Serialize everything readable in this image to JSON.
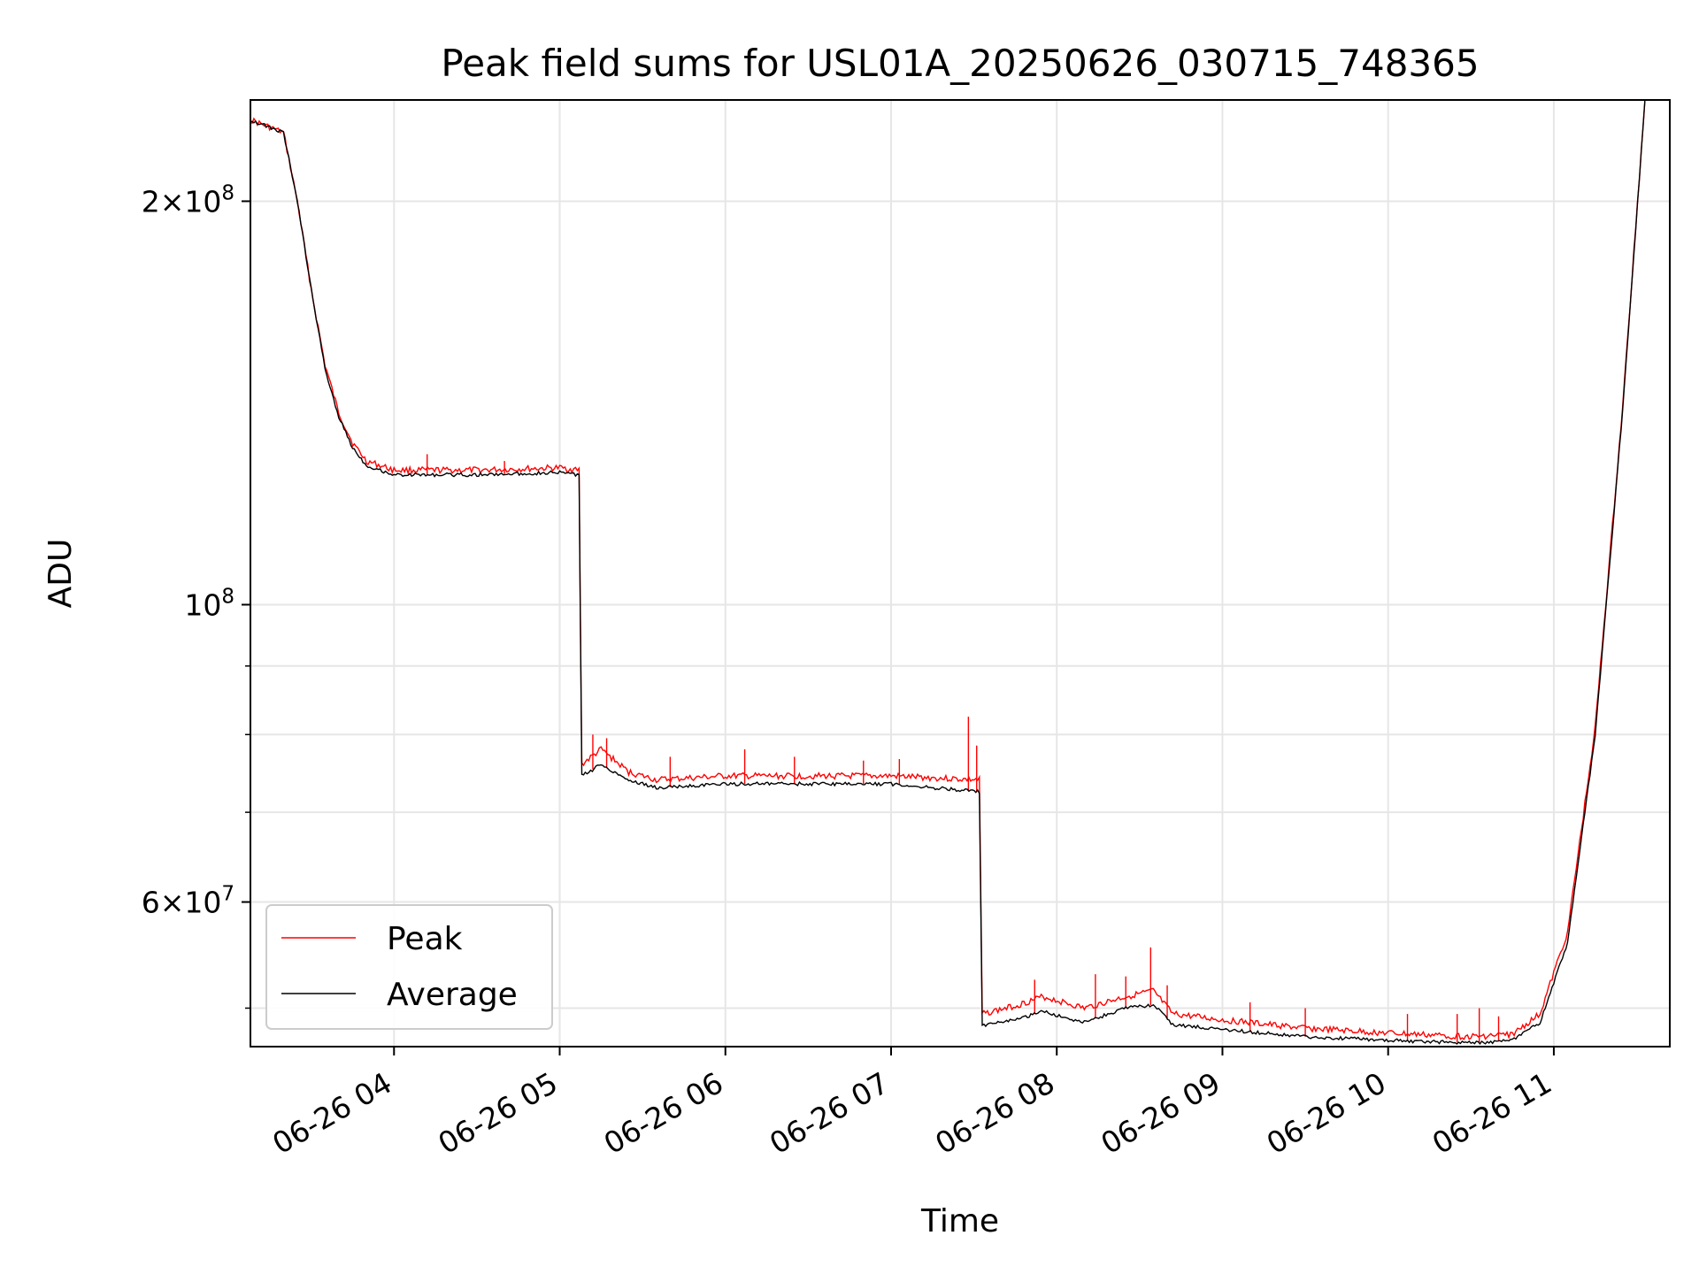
{
  "chart_data": {
    "type": "line",
    "title": "Peak field sums for USL01A_20250626_030715_748365",
    "xlabel": "Time",
    "ylabel": "ADU",
    "yscale": "log",
    "ylim": [
      46800000,
      238000000
    ],
    "xlim": [
      "2025-06-26 03:08",
      "2025-06-26 11:42"
    ],
    "grid": true,
    "legend": {
      "position": "lower left",
      "entries": [
        "Peak",
        "Average"
      ]
    },
    "x_ticks": [
      "06-26 04",
      "06-26 05",
      "06-26 06",
      "06-26 07",
      "06-26 08",
      "06-26 09",
      "06-26 10",
      "06-26 11"
    ],
    "y_ticks": [
      {
        "value": 200000000,
        "base": "2",
        "mult": "×10",
        "exp": "8"
      },
      {
        "value": 100000000,
        "base": "",
        "mult": "10",
        "exp": "8"
      },
      {
        "value": 60000000,
        "base": "6",
        "mult": "×10",
        "exp": "7"
      }
    ],
    "y_minor_ticks": [
      50000000,
      70000000,
      80000000,
      90000000
    ],
    "colors": {
      "peak": "#ff0000",
      "average": "#000000",
      "grid": "#e6e6e6"
    },
    "series": [
      {
        "name": "Average",
        "x": [
          "2025-06-26 03:08",
          "2025-06-26 03:20",
          "2025-06-26 03:25",
          "2025-06-26 03:30",
          "2025-06-26 03:35",
          "2025-06-26 03:40",
          "2025-06-26 03:45",
          "2025-06-26 03:50",
          "2025-06-26 04:00",
          "2025-06-26 04:30",
          "2025-06-26 05:00",
          "2025-06-26 05:07",
          "2025-06-26 05:08",
          "2025-06-26 05:15",
          "2025-06-26 05:25",
          "2025-06-26 05:35",
          "2025-06-26 06:00",
          "2025-06-26 06:30",
          "2025-06-26 07:00",
          "2025-06-26 07:32",
          "2025-06-26 07:33",
          "2025-06-26 07:45",
          "2025-06-26 07:55",
          "2025-06-26 08:10",
          "2025-06-26 08:25",
          "2025-06-26 08:35",
          "2025-06-26 08:42",
          "2025-06-26 09:00",
          "2025-06-26 09:30",
          "2025-06-26 10:00",
          "2025-06-26 10:30",
          "2025-06-26 10:45",
          "2025-06-26 10:55",
          "2025-06-26 11:05",
          "2025-06-26 11:15",
          "2025-06-26 11:25",
          "2025-06-26 11:33"
        ],
        "values": [
          230000000,
          225000000,
          200000000,
          172000000,
          150000000,
          138000000,
          131000000,
          127000000,
          125000000,
          125000000,
          125500000,
          125000000,
          74500000,
          76000000,
          74000000,
          73000000,
          73500000,
          73500000,
          73500000,
          72500000,
          48500000,
          49000000,
          49700000,
          48800000,
          50000000,
          50300000,
          48600000,
          48200000,
          47600000,
          47300000,
          47100000,
          47300000,
          48800000,
          56000000,
          80000000,
          140000000,
          238000000
        ]
      },
      {
        "name": "Peak",
        "x": [
          "2025-06-26 03:08",
          "2025-06-26 03:20",
          "2025-06-26 03:25",
          "2025-06-26 03:30",
          "2025-06-26 03:35",
          "2025-06-26 03:40",
          "2025-06-26 03:45",
          "2025-06-26 03:50",
          "2025-06-26 04:00",
          "2025-06-26 04:30",
          "2025-06-26 05:00",
          "2025-06-26 05:07",
          "2025-06-26 05:08",
          "2025-06-26 05:15",
          "2025-06-26 05:25",
          "2025-06-26 05:35",
          "2025-06-26 06:00",
          "2025-06-26 06:30",
          "2025-06-26 07:00",
          "2025-06-26 07:32",
          "2025-06-26 07:33",
          "2025-06-26 07:45",
          "2025-06-26 07:55",
          "2025-06-26 08:10",
          "2025-06-26 08:25",
          "2025-06-26 08:35",
          "2025-06-26 08:42",
          "2025-06-26 09:00",
          "2025-06-26 09:30",
          "2025-06-26 10:00",
          "2025-06-26 10:30",
          "2025-06-26 10:45",
          "2025-06-26 10:55",
          "2025-06-26 11:05",
          "2025-06-26 11:15",
          "2025-06-26 11:25",
          "2025-06-26 11:33"
        ],
        "values": [
          230000000,
          225000000,
          200000000,
          172000000,
          151000000,
          139000000,
          132000000,
          128000000,
          126000000,
          126000000,
          126500000,
          126000000,
          76000000,
          78000000,
          75000000,
          74000000,
          74500000,
          74500000,
          74500000,
          74000000,
          49500000,
          50200000,
          51000000,
          50000000,
          51000000,
          51500000,
          49500000,
          49000000,
          48300000,
          47900000,
          47600000,
          47800000,
          49500000,
          57000000,
          81000000,
          141000000,
          238000000
        ]
      }
    ],
    "peak_spikes": [
      {
        "x": "2025-06-26 04:12",
        "value": 129500000
      },
      {
        "x": "2025-06-26 04:40",
        "value": 128000000
      },
      {
        "x": "2025-06-26 05:12",
        "value": 80000000
      },
      {
        "x": "2025-06-26 05:17",
        "value": 79500000
      },
      {
        "x": "2025-06-26 05:40",
        "value": 77000000
      },
      {
        "x": "2025-06-26 06:07",
        "value": 78000000
      },
      {
        "x": "2025-06-26 06:25",
        "value": 77000000
      },
      {
        "x": "2025-06-26 06:50",
        "value": 76500000
      },
      {
        "x": "2025-06-26 07:03",
        "value": 76700000
      },
      {
        "x": "2025-06-26 07:28",
        "value": 82500000
      },
      {
        "x": "2025-06-26 07:31",
        "value": 78500000
      },
      {
        "x": "2025-06-26 07:52",
        "value": 52500000
      },
      {
        "x": "2025-06-26 08:14",
        "value": 53000000
      },
      {
        "x": "2025-06-26 08:25",
        "value": 52800000
      },
      {
        "x": "2025-06-26 08:34",
        "value": 55500000
      },
      {
        "x": "2025-06-26 08:40",
        "value": 52000000
      },
      {
        "x": "2025-06-26 09:10",
        "value": 50500000
      },
      {
        "x": "2025-06-26 09:30",
        "value": 50000000
      },
      {
        "x": "2025-06-26 10:07",
        "value": 49500000
      },
      {
        "x": "2025-06-26 10:25",
        "value": 49500000
      },
      {
        "x": "2025-06-26 10:33",
        "value": 50000000
      },
      {
        "x": "2025-06-26 10:40",
        "value": 49300000
      }
    ]
  }
}
